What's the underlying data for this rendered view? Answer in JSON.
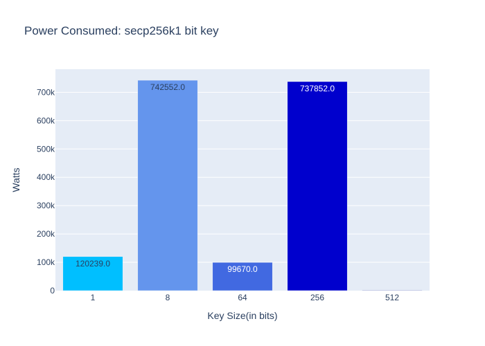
{
  "chart_data": {
    "type": "bar",
    "title": "Power Consumed: secp256k1 bit key",
    "xlabel": "Key Size(in bits)",
    "ylabel": "Watts",
    "categories": [
      "1",
      "8",
      "64",
      "256",
      "512"
    ],
    "values": [
      120239.0,
      742552.0,
      99670.0,
      737852.0,
      0
    ],
    "data_labels": [
      "120239.0",
      "742552.0",
      "99670.0",
      "737852.0",
      ""
    ],
    "bar_colors": [
      "#00bfff",
      "#6495ed",
      "#4169e1",
      "#0000cd",
      "#00008b"
    ],
    "label_colors": [
      "#2a3f5f",
      "#2a3f5f",
      "#ffffff",
      "#ffffff",
      "#ffffff"
    ],
    "ylim": [
      0,
      781634
    ],
    "yticks": [
      0,
      100000,
      200000,
      300000,
      400000,
      500000,
      600000,
      700000
    ],
    "ytick_labels": [
      "0",
      "100k",
      "200k",
      "300k",
      "400k",
      "500k",
      "600k",
      "700k"
    ],
    "grid": true,
    "plot_bg": "#e5ecf6"
  }
}
